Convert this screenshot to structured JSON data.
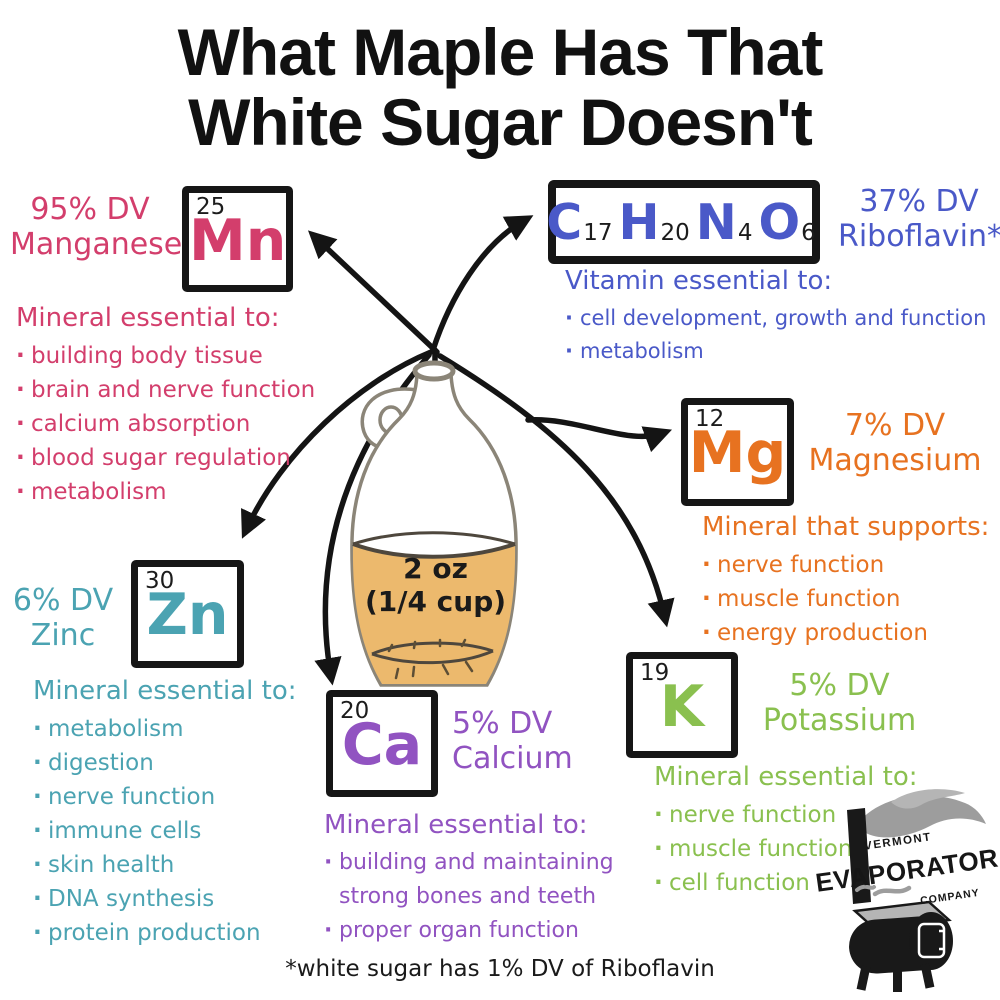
{
  "title": {
    "line1": "What Maple Has That",
    "line2": "White Sugar Doesn't"
  },
  "jug": {
    "label_line1": "2 oz",
    "label_line2": "(1/4 cup)"
  },
  "footnote": "*white sugar has 1% DV of Riboflavin",
  "colors": {
    "manganese": "#d33e6c",
    "riboflavin": "#4a59c8",
    "magnesium": "#e77220",
    "zinc": "#4ba3b2",
    "calcium": "#9153c1",
    "potassium": "#8ac04f",
    "ink": "#151515",
    "syrup": "#ecb96d"
  },
  "sections": {
    "manganese": {
      "dv": "95% DV",
      "name": "Manganese",
      "atomic_number": "25",
      "symbol": "Mn",
      "list_title": "Mineral essential to:",
      "items": [
        "building body tissue",
        "brain and nerve function",
        "calcium absorption",
        "blood sugar regulation",
        "metabolism"
      ]
    },
    "riboflavin": {
      "dv": "37% DV",
      "name": "Riboflavin*",
      "formula": [
        {
          "symbol": "C",
          "subscript": "17"
        },
        {
          "symbol": "H",
          "subscript": "20"
        },
        {
          "symbol": "N",
          "subscript": "4"
        },
        {
          "symbol": "O",
          "subscript": "6"
        }
      ],
      "list_title": "Vitamin essential to:",
      "items": [
        "cell development, growth and function",
        "metabolism"
      ]
    },
    "magnesium": {
      "dv": "7% DV",
      "name": "Magnesium",
      "atomic_number": "12",
      "symbol": "Mg",
      "list_title": "Mineral that supports:",
      "items": [
        "nerve function",
        "muscle function",
        "energy production"
      ]
    },
    "zinc": {
      "dv": "6% DV",
      "name": "Zinc",
      "atomic_number": "30",
      "symbol": "Zn",
      "list_title": "Mineral essential to:",
      "items": [
        "metabolism",
        "digestion",
        "nerve function",
        "immune cells",
        "skin health",
        "DNA synthesis",
        "protein production"
      ]
    },
    "calcium": {
      "dv": "5% DV",
      "name": "Calcium",
      "atomic_number": "20",
      "symbol": "Ca",
      "list_title": "Mineral essential to:",
      "items": [
        "building and maintaining strong bones and teeth",
        "proper organ function"
      ]
    },
    "potassium": {
      "dv": "5% DV",
      "name": "Potassium",
      "atomic_number": "19",
      "symbol": "K",
      "list_title": "Mineral essential to:",
      "items": [
        "nerve function",
        "muscle function",
        "cell function"
      ]
    }
  },
  "logo": {
    "vermont": "VERMONT",
    "evaporator": "EVAPORATOR",
    "company": "COMPANY"
  }
}
